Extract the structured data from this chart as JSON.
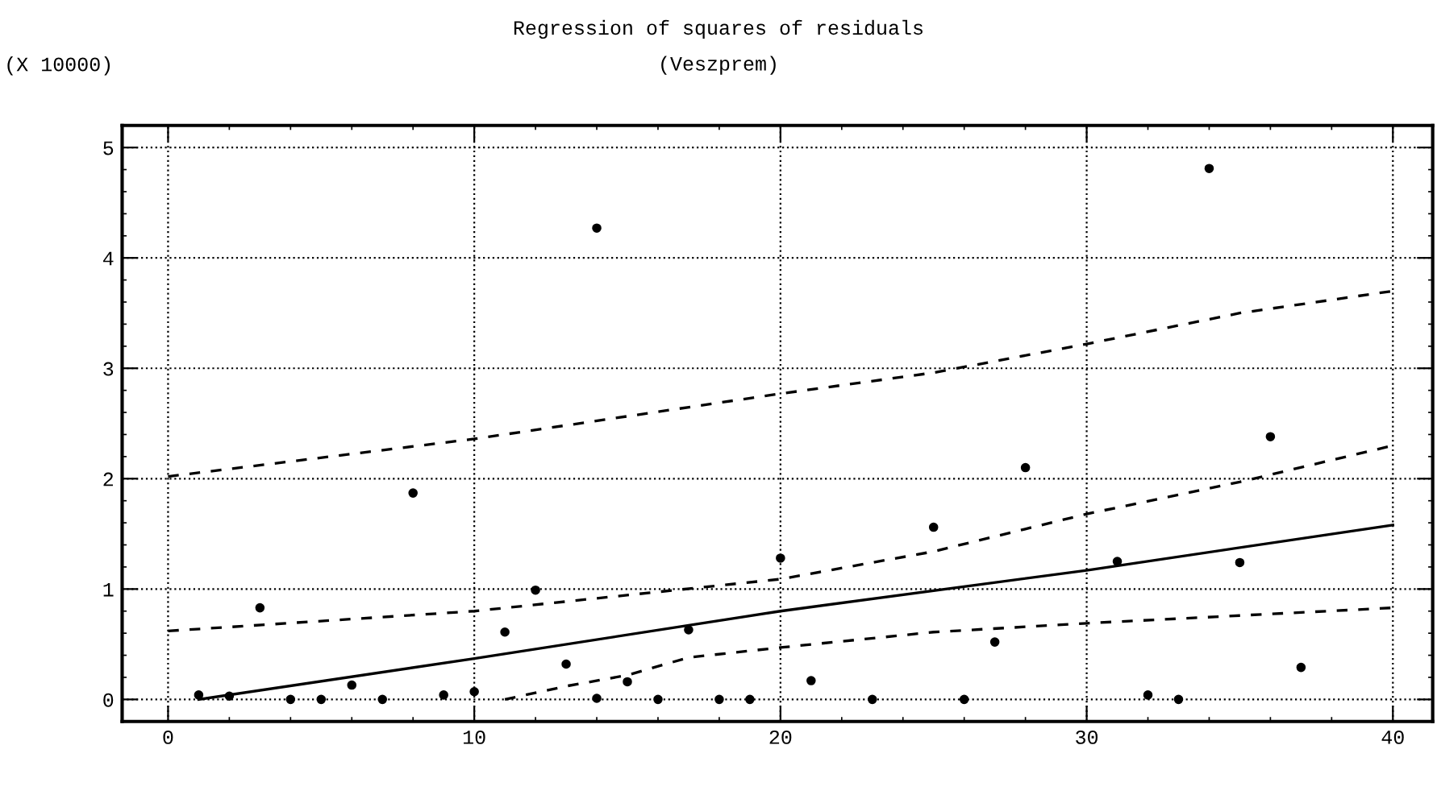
{
  "chart_data": {
    "type": "scatter",
    "title": "Regression of squares of residuals",
    "subtitle": "(Veszprem)",
    "ylabel": "(X 10000)",
    "xlim": [
      -1.5,
      41.3
    ],
    "ylim": [
      -0.2,
      5.2
    ],
    "xticks": [
      0,
      10,
      20,
      30,
      40
    ],
    "yticks": [
      0,
      1,
      2,
      3,
      4,
      5
    ],
    "grid": true,
    "series": [
      {
        "color": "#000000",
        "marker": "circle",
        "x": [
          1,
          2,
          3,
          4,
          5,
          6,
          7,
          8,
          9,
          10,
          11,
          12,
          13,
          14,
          14,
          15,
          16,
          17,
          18,
          19,
          20,
          21,
          23,
          25,
          26,
          27,
          28,
          31,
          32,
          33,
          34,
          35,
          36,
          37
        ],
        "values": [
          0.04,
          0.03,
          0.83,
          0,
          0,
          0.13,
          0,
          1.87,
          0.04,
          0.07,
          0.61,
          0.99,
          0.32,
          0.01,
          4.27,
          0.16,
          0,
          0.63,
          0,
          0,
          1.28,
          0.17,
          0,
          1.56,
          0,
          0.52,
          2.1,
          1.25,
          0.04,
          0,
          4.81,
          1.24,
          2.38,
          0.29
        ]
      },
      {
        "type": "line",
        "color": "#000000",
        "line_style": "solid",
        "marker": "none",
        "x": [
          1,
          10,
          20,
          30,
          40
        ],
        "values": [
          0,
          0.37,
          0.8,
          1.17,
          1.58
        ]
      },
      {
        "type": "line",
        "color": "#000000",
        "line_style": "dashed",
        "marker": "none",
        "x": [
          0,
          10,
          20,
          25,
          30,
          35,
          40
        ],
        "values": [
          0.62,
          0.8,
          1.09,
          1.34,
          1.68,
          1.97,
          2.3
        ]
      },
      {
        "type": "line",
        "color": "#000000",
        "line_style": "dashed",
        "marker": "none",
        "x": [
          11,
          13,
          15,
          17,
          20,
          25,
          30,
          35,
          40
        ],
        "values": [
          0,
          0.12,
          0.22,
          0.38,
          0.47,
          0.61,
          0.69,
          0.76,
          0.83
        ]
      },
      {
        "type": "line",
        "color": "#000000",
        "line_style": "dashed",
        "marker": "none",
        "x": [
          0,
          10,
          20,
          25,
          30,
          35,
          40
        ],
        "values": [
          2.02,
          2.36,
          2.77,
          2.96,
          3.22,
          3.5,
          3.7
        ]
      }
    ]
  }
}
